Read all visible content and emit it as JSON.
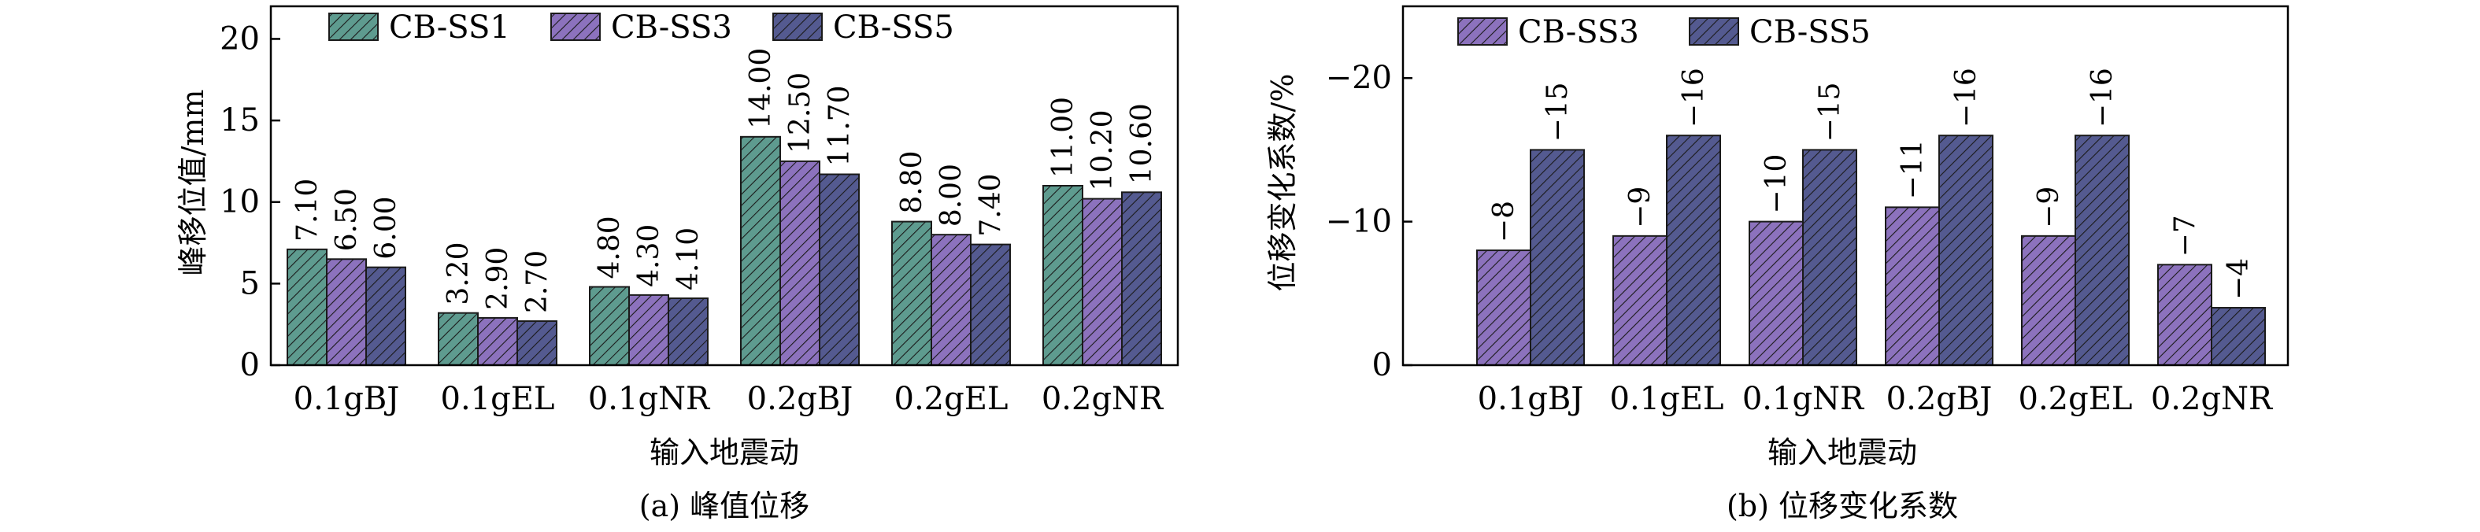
{
  "colors": {
    "CB-SS1": "#5e9b8f",
    "CB-SS3": "#8c72bd",
    "CB-SS5": "#545a90",
    "axis": "#000000"
  },
  "chart_data": [
    {
      "type": "bar",
      "caption": "(a) 峰值位移",
      "xlabel": "输入地震动",
      "ylabel": "峰移位值/mm",
      "ylim": [
        0,
        22
      ],
      "yticks": [
        0,
        5,
        10,
        15,
        20
      ],
      "categories": [
        "0.1gBJ",
        "0.1gEL",
        "0.1gNR",
        "0.2gBJ",
        "0.2gEL",
        "0.2gNR"
      ],
      "series": [
        {
          "name": "CB-SS1",
          "values": [
            7.1,
            3.2,
            4.8,
            14.0,
            8.8,
            11.0
          ],
          "labels": [
            "7.10",
            "3.20",
            "4.80",
            "14.00",
            "8.80",
            "11.00"
          ]
        },
        {
          "name": "CB-SS3",
          "values": [
            6.5,
            2.9,
            4.3,
            12.5,
            8.0,
            10.2
          ],
          "labels": [
            "6.50",
            "2.90",
            "4.30",
            "12.50",
            "8.00",
            "10.20"
          ]
        },
        {
          "name": "CB-SS5",
          "values": [
            6.0,
            2.7,
            4.1,
            11.7,
            7.4,
            10.6
          ],
          "labels": [
            "6.00",
            "2.70",
            "4.10",
            "11.70",
            "7.40",
            "10.60"
          ]
        }
      ],
      "legend": "top",
      "grid": false
    },
    {
      "type": "bar",
      "caption": "(b) 位移变化系数",
      "xlabel": "输入地震动",
      "ylabel": "位移变化系数/%",
      "ylim": [
        0,
        -25
      ],
      "yticks": [
        0,
        -10,
        -20
      ],
      "ytick_labels": [
        "0",
        "−10",
        "−20"
      ],
      "inverted_y": true,
      "categories": [
        "0.1gBJ",
        "0.1gEL",
        "0.1gNR",
        "0.2gBJ",
        "0.2gEL",
        "0.2gNR"
      ],
      "series": [
        {
          "name": "CB-SS3",
          "values": [
            -8,
            -9,
            -10,
            -11,
            -9,
            -7
          ],
          "labels": [
            "−8",
            "−9",
            "−10",
            "−11",
            "−9",
            "−7"
          ]
        },
        {
          "name": "CB-SS5",
          "values": [
            -15,
            -16,
            -15,
            -16,
            -16,
            -4
          ],
          "labels": [
            "−15",
            "−16",
            "−15",
            "−16",
            "−16",
            "−4"
          ]
        }
      ],
      "legend": "top-left",
      "grid": false
    }
  ]
}
